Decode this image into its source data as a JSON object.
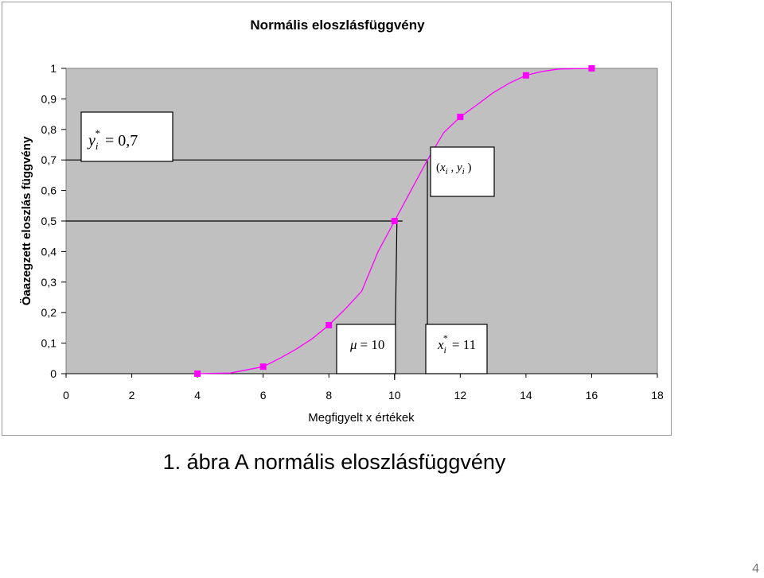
{
  "chart_data": {
    "type": "line",
    "title": "Normális eloszlásfüggvény",
    "xlabel": "Megfigyelt x értékek",
    "ylabel": "Öaazegzett eloszlás függvény",
    "xlim": [
      0,
      18
    ],
    "ylim": [
      0,
      1
    ],
    "x_ticks": [
      "0",
      "2",
      "4",
      "6",
      "8",
      "10",
      "12",
      "14",
      "16",
      "18"
    ],
    "y_ticks": [
      "0",
      "0,1",
      "0,2",
      "0,3",
      "0,4",
      "0,5",
      "0,6",
      "0,7",
      "0,8",
      "0,9",
      "1"
    ],
    "grid": false,
    "legend": "none",
    "plot_background": "#c0c0c0",
    "series": [
      {
        "color": "#ff00ff",
        "markers": "square",
        "points": [
          {
            "x": 4,
            "y": 0.0
          },
          {
            "x": 6,
            "y": 0.023
          },
          {
            "x": 8,
            "y": 0.159
          },
          {
            "x": 10,
            "y": 0.5
          },
          {
            "x": 12,
            "y": 0.841
          },
          {
            "x": 14,
            "y": 0.977
          },
          {
            "x": 16,
            "y": 1.0
          }
        ],
        "curve": [
          [
            4,
            0.0
          ],
          [
            5,
            0.002
          ],
          [
            6,
            0.023
          ],
          [
            6.5,
            0.05
          ],
          [
            7,
            0.08
          ],
          [
            7.5,
            0.115
          ],
          [
            8,
            0.159
          ],
          [
            8.5,
            0.212
          ],
          [
            9,
            0.27
          ],
          [
            9.5,
            0.4
          ],
          [
            10,
            0.5
          ],
          [
            10.5,
            0.6
          ],
          [
            11,
            0.7
          ],
          [
            11.5,
            0.79
          ],
          [
            12,
            0.841
          ],
          [
            12.5,
            0.88
          ],
          [
            13,
            0.92
          ],
          [
            13.5,
            0.952
          ],
          [
            14,
            0.977
          ],
          [
            14.5,
            0.99
          ],
          [
            15,
            0.998
          ],
          [
            16,
            1.0
          ]
        ]
      }
    ],
    "annotations": {
      "mu": {
        "symbol": "μ",
        "value": "10",
        "x": 10,
        "y": 0.5
      },
      "point": {
        "label": "(xi , yi)",
        "x": 11,
        "y": 0.7
      },
      "y_star": {
        "value": "0,7"
      },
      "x_star": {
        "value": "11"
      }
    }
  },
  "caption": "1. ábra A normális eloszlásfüggvény",
  "page_number": "4"
}
